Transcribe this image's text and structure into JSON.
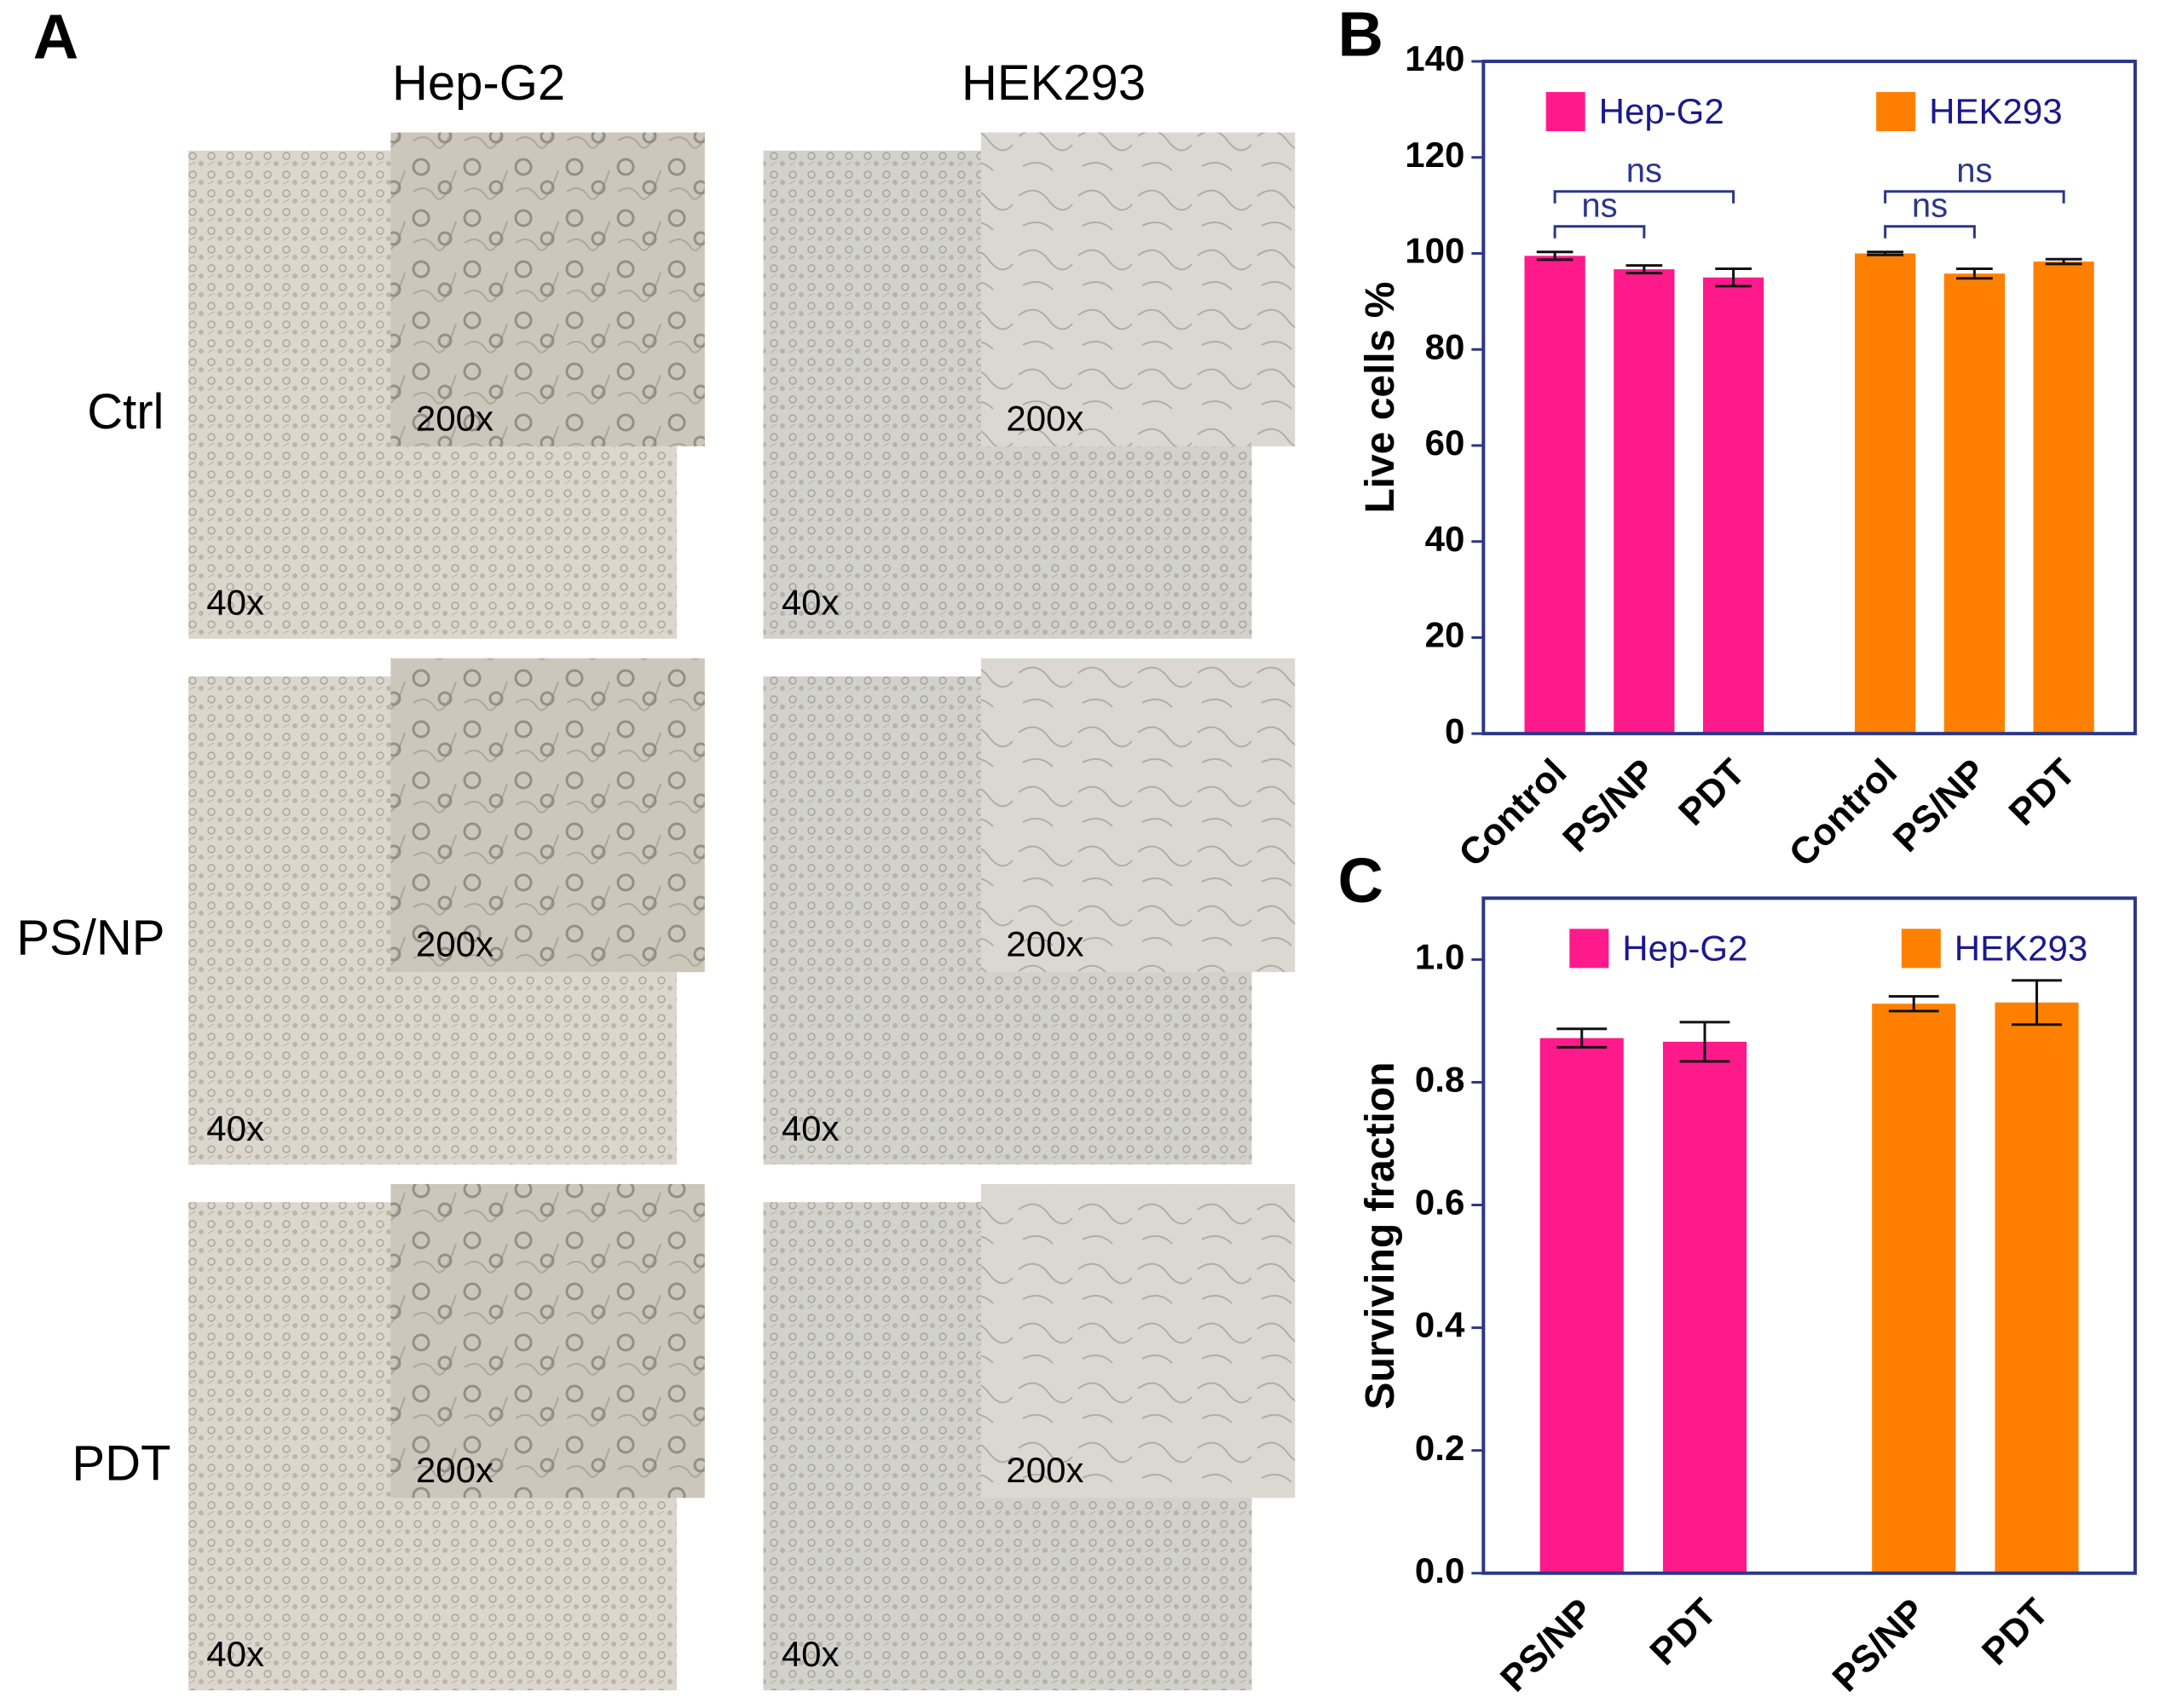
{
  "panel_a": {
    "label": "A",
    "columns": [
      "Hep-G2",
      "HEK293"
    ],
    "rows": [
      "Ctrl",
      "PS/NP",
      "PDT"
    ],
    "magnifications": {
      "low": "40x",
      "high": "200x"
    }
  },
  "chart_data": [
    {
      "type": "bar",
      "panel": "B",
      "ylabel": "Live cells %",
      "categories": [
        "Control",
        "PS/NP",
        "PDT"
      ],
      "series": [
        {
          "name": "Hep-G2",
          "color": "#ff1a8c",
          "values": [
            99.5,
            96.7,
            95.0
          ],
          "errors": [
            0.8,
            0.8,
            1.8
          ],
          "significance": [
            {
              "label": "ns",
              "between": [
                "Control",
                "PS/NP"
              ]
            },
            {
              "label": "ns",
              "between": [
                "Control",
                "PDT"
              ]
            }
          ]
        },
        {
          "name": "HEK293",
          "color": "#ff8000",
          "values": [
            100.0,
            95.8,
            98.3
          ],
          "errors": [
            0.3,
            1.0,
            0.5
          ],
          "significance": [
            {
              "label": "ns",
              "between": [
                "Control",
                "PS/NP"
              ]
            },
            {
              "label": "ns",
              "between": [
                "Control",
                "PDT"
              ]
            }
          ]
        }
      ],
      "ylim": [
        0,
        140
      ],
      "yticks": [
        0,
        20,
        40,
        60,
        80,
        100,
        120,
        140
      ]
    },
    {
      "type": "bar",
      "panel": "C",
      "ylabel": "Surviving fraction",
      "categories": [
        "PS/NP",
        "PDT"
      ],
      "series": [
        {
          "name": "Hep-G2",
          "color": "#ff1a8c",
          "values": [
            0.872,
            0.866
          ],
          "errors": [
            0.015,
            0.032
          ]
        },
        {
          "name": "HEK293",
          "color": "#ff8000",
          "values": [
            0.928,
            0.93
          ],
          "errors": [
            0.012,
            0.036
          ]
        }
      ],
      "ylim": [
        0,
        1.1
      ],
      "yticks": [
        {
          "value": 0,
          "label": "0.0"
        },
        0.2,
        0.4,
        0.6,
        0.8,
        {
          "value": 1,
          "label": "1.0"
        }
      ]
    }
  ]
}
